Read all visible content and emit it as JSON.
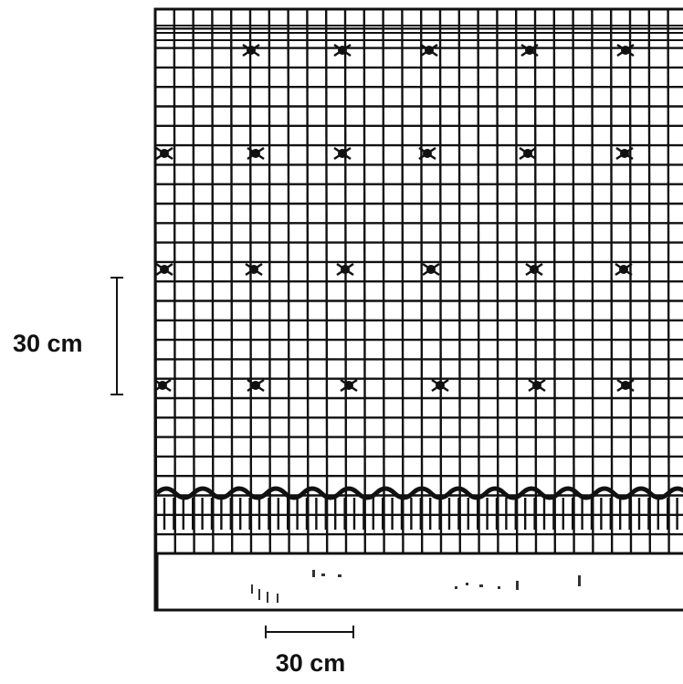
{
  "scale_bars": {
    "vertical": {
      "label": "30 cm"
    },
    "horizontal": {
      "label": "30 cm"
    }
  }
}
